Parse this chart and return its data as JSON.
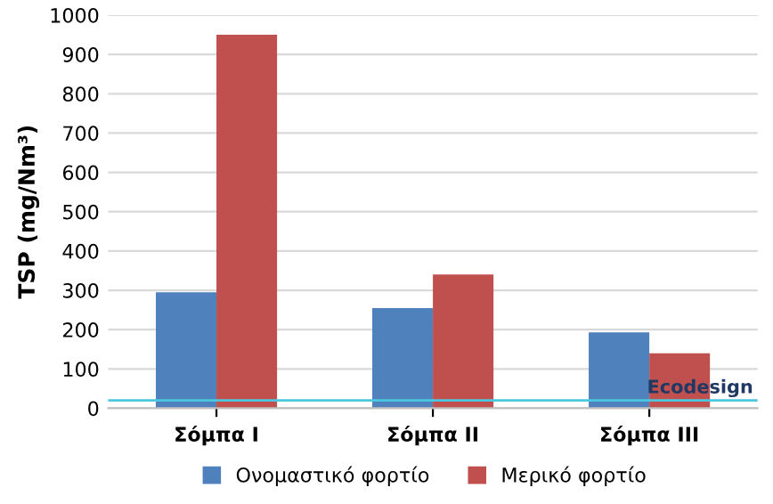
{
  "chart_data": {
    "type": "bar",
    "ylabel": "TSP (mg/Nm³)",
    "categories": [
      "Σόμπα I",
      "Σόμπα II",
      "Σόμπα III"
    ],
    "series": [
      {
        "name": "Ονομαστικό φορτίο",
        "color": "#4f81bd",
        "values": [
          295,
          255,
          193
        ]
      },
      {
        "name": "Μερικό φορτίο",
        "color": "#c0504d",
        "values": [
          950,
          340,
          140
        ]
      }
    ],
    "ylim": [
      0,
      1000
    ],
    "yticks": [
      0,
      100,
      200,
      300,
      400,
      500,
      600,
      700,
      800,
      900,
      1000
    ],
    "grid": "y",
    "legend": "bottom",
    "ref_lines": [
      {
        "axis": "y",
        "value": 20,
        "label": "Ecodesign",
        "color": "#4bc8e0"
      }
    ]
  }
}
